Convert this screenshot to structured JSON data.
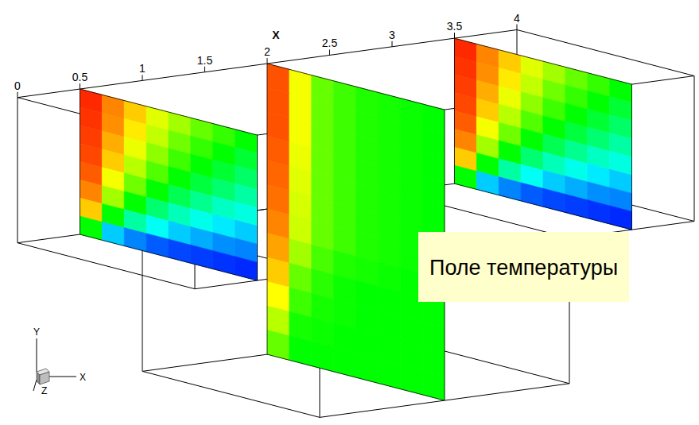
{
  "chart_data": {
    "type": "contour_slices",
    "annotation": "Поле температуры",
    "xlabel": "X",
    "xlim": [
      0,
      4
    ],
    "xticks": [
      0,
      0.5,
      1,
      1.5,
      2,
      2.5,
      3,
      3.5,
      4
    ],
    "axis_triad": [
      "Y",
      "X",
      "Z"
    ],
    "channel": {
      "height": 1
    },
    "cavity": {
      "x": [
        1,
        3
      ],
      "depth": 1
    },
    "color_range": [
      0,
      1
    ],
    "slices": [
      {
        "x": 0.5,
        "height": 1,
        "values": [
          [
            0.96,
            0.87,
            0.8,
            0.72,
            0.66,
            0.6,
            0.55,
            0.5
          ],
          [
            0.95,
            0.86,
            0.77,
            0.69,
            0.61,
            0.55,
            0.5,
            0.45
          ],
          [
            0.94,
            0.83,
            0.73,
            0.64,
            0.56,
            0.5,
            0.45,
            0.4
          ],
          [
            0.93,
            0.8,
            0.68,
            0.58,
            0.5,
            0.44,
            0.39,
            0.34
          ],
          [
            0.91,
            0.74,
            0.61,
            0.5,
            0.42,
            0.36,
            0.31,
            0.28
          ],
          [
            0.87,
            0.66,
            0.5,
            0.39,
            0.32,
            0.27,
            0.23,
            0.2
          ],
          [
            0.8,
            0.5,
            0.34,
            0.26,
            0.2,
            0.17,
            0.14,
            0.13
          ],
          [
            0.5,
            0.2,
            0.13,
            0.09,
            0.07,
            0.06,
            0.05,
            0.04
          ]
        ]
      },
      {
        "x": 2,
        "height": 2,
        "values": [
          [
            0.92,
            0.74,
            0.6,
            0.56,
            0.53,
            0.52,
            0.51,
            0.5
          ],
          [
            0.92,
            0.74,
            0.6,
            0.56,
            0.53,
            0.52,
            0.51,
            0.5
          ],
          [
            0.92,
            0.74,
            0.6,
            0.56,
            0.53,
            0.52,
            0.51,
            0.5
          ],
          [
            0.91,
            0.73,
            0.6,
            0.56,
            0.53,
            0.52,
            0.51,
            0.5
          ],
          [
            0.9,
            0.72,
            0.6,
            0.56,
            0.53,
            0.52,
            0.51,
            0.5
          ],
          [
            0.89,
            0.71,
            0.6,
            0.56,
            0.53,
            0.52,
            0.51,
            0.5
          ],
          [
            0.87,
            0.7,
            0.6,
            0.56,
            0.53,
            0.52,
            0.51,
            0.5
          ],
          [
            0.84,
            0.66,
            0.57,
            0.53,
            0.52,
            0.51,
            0.5,
            0.5
          ],
          [
            0.8,
            0.6,
            0.54,
            0.51,
            0.5,
            0.5,
            0.5,
            0.5
          ],
          [
            0.75,
            0.56,
            0.52,
            0.51,
            0.5,
            0.5,
            0.5,
            0.5
          ],
          [
            0.68,
            0.52,
            0.51,
            0.5,
            0.5,
            0.5,
            0.5,
            0.5
          ],
          [
            0.6,
            0.5,
            0.5,
            0.5,
            0.5,
            0.5,
            0.5,
            0.5
          ]
        ]
      },
      {
        "x": 3.5,
        "height": 1,
        "values": [
          [
            0.96,
            0.87,
            0.8,
            0.72,
            0.66,
            0.6,
            0.55,
            0.5
          ],
          [
            0.95,
            0.86,
            0.77,
            0.69,
            0.61,
            0.55,
            0.5,
            0.45
          ],
          [
            0.94,
            0.83,
            0.73,
            0.64,
            0.56,
            0.5,
            0.45,
            0.4
          ],
          [
            0.93,
            0.8,
            0.68,
            0.58,
            0.5,
            0.44,
            0.39,
            0.34
          ],
          [
            0.91,
            0.74,
            0.61,
            0.5,
            0.42,
            0.36,
            0.31,
            0.28
          ],
          [
            0.87,
            0.66,
            0.5,
            0.39,
            0.32,
            0.27,
            0.23,
            0.2
          ],
          [
            0.8,
            0.5,
            0.34,
            0.26,
            0.2,
            0.17,
            0.14,
            0.13
          ],
          [
            0.5,
            0.2,
            0.13,
            0.09,
            0.07,
            0.06,
            0.05,
            0.04
          ]
        ]
      }
    ]
  }
}
